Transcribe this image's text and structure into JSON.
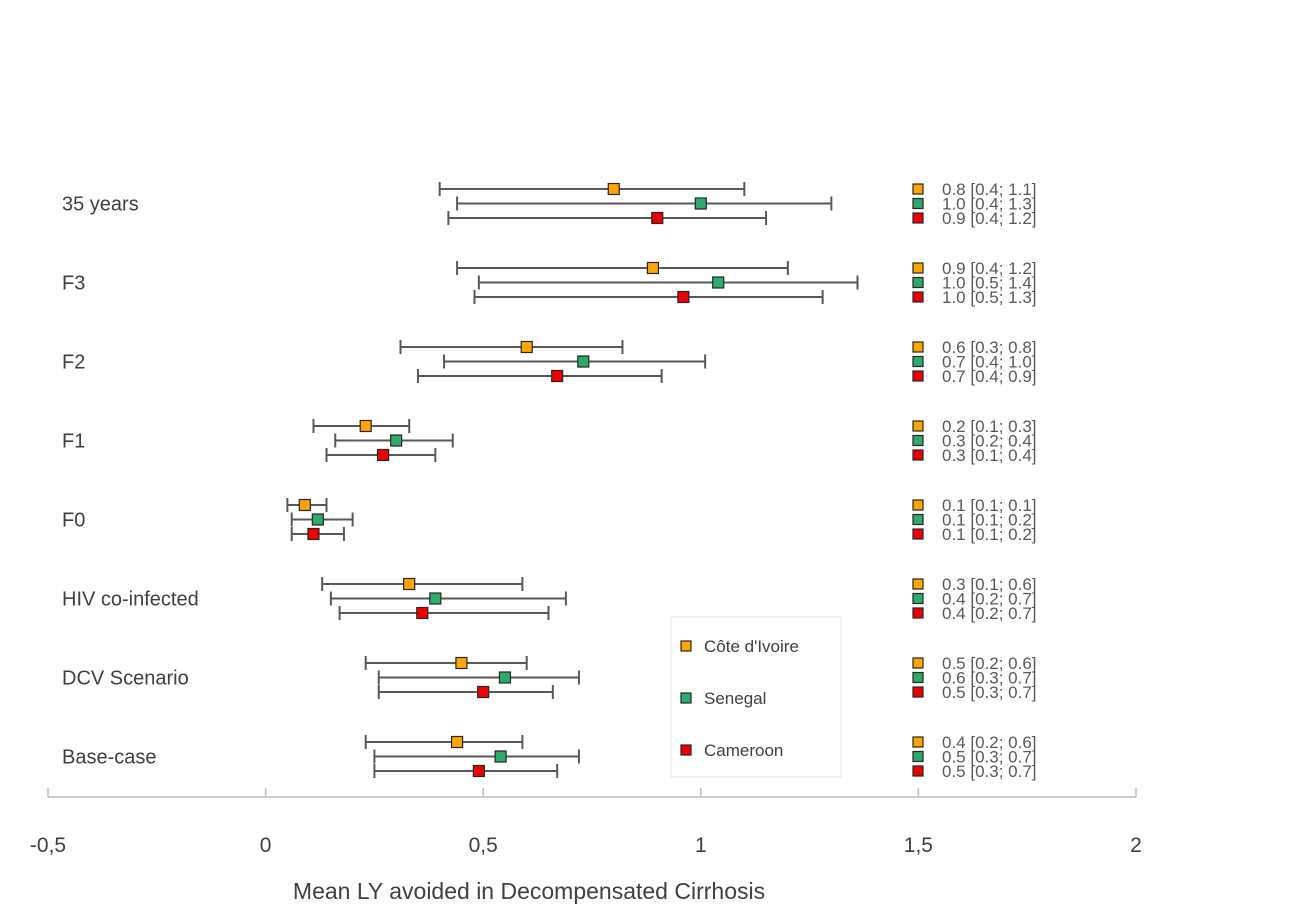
{
  "chart_data": {
    "type": "forest",
    "xlabel": "Mean LY avoided in Decompensated Cirrhosis",
    "xlim": [
      -0.5,
      2
    ],
    "x_ticks": [
      -0.5,
      0,
      0.5,
      1,
      1.5,
      2
    ],
    "x_tick_labels": [
      "-0,5",
      "0",
      "0,5",
      "1",
      "1,5",
      "2"
    ],
    "legend_position": "lower-right",
    "series": [
      {
        "name": "Côte d'Ivoire",
        "color": "#FFA500"
      },
      {
        "name": "Senegal",
        "color": "#2EAA6A"
      },
      {
        "name": "Cameroon",
        "color": "#EE0000"
      }
    ],
    "categories": [
      {
        "label": "35 years",
        "rows": [
          {
            "series": "Côte d'Ivoire",
            "mean": 0.8,
            "low": 0.4,
            "high": 1.1,
            "text": "0.8 [0.4; 1.1]"
          },
          {
            "series": "Senegal",
            "mean": 1.0,
            "low": 0.44,
            "high": 1.3,
            "text": "1.0 [0.4; 1.3]"
          },
          {
            "series": "Cameroon",
            "mean": 0.9,
            "low": 0.42,
            "high": 1.15,
            "text": "0.9 [0.4; 1.2]"
          }
        ]
      },
      {
        "label": "F3",
        "rows": [
          {
            "series": "Côte d'Ivoire",
            "mean": 0.89,
            "low": 0.44,
            "high": 1.2,
            "text": "0.9 [0.4; 1.2]"
          },
          {
            "series": "Senegal",
            "mean": 1.04,
            "low": 0.49,
            "high": 1.36,
            "text": "1.0 [0.5; 1.4]"
          },
          {
            "series": "Cameroon",
            "mean": 0.96,
            "low": 0.48,
            "high": 1.28,
            "text": "1.0 [0.5; 1.3]"
          }
        ]
      },
      {
        "label": "F2",
        "rows": [
          {
            "series": "Côte d'Ivoire",
            "mean": 0.6,
            "low": 0.31,
            "high": 0.82,
            "text": "0.6 [0.3; 0.8]"
          },
          {
            "series": "Senegal",
            "mean": 0.73,
            "low": 0.41,
            "high": 1.01,
            "text": "0.7 [0.4; 1.0]"
          },
          {
            "series": "Cameroon",
            "mean": 0.67,
            "low": 0.35,
            "high": 0.91,
            "text": "0.7 [0.4; 0.9]"
          }
        ]
      },
      {
        "label": "F1",
        "rows": [
          {
            "series": "Côte d'Ivoire",
            "mean": 0.23,
            "low": 0.11,
            "high": 0.33,
            "text": "0.2 [0.1; 0.3]"
          },
          {
            "series": "Senegal",
            "mean": 0.3,
            "low": 0.16,
            "high": 0.43,
            "text": "0.3 [0.2; 0.4]"
          },
          {
            "series": "Cameroon",
            "mean": 0.27,
            "low": 0.14,
            "high": 0.39,
            "text": "0.3 [0.1; 0.4]"
          }
        ]
      },
      {
        "label": "F0",
        "rows": [
          {
            "series": "Côte d'Ivoire",
            "mean": 0.09,
            "low": 0.05,
            "high": 0.14,
            "text": "0.1 [0.1; 0.1]"
          },
          {
            "series": "Senegal",
            "mean": 0.12,
            "low": 0.06,
            "high": 0.2,
            "text": "0.1 [0.1; 0.2]"
          },
          {
            "series": "Cameroon",
            "mean": 0.11,
            "low": 0.06,
            "high": 0.18,
            "text": "0.1 [0.1; 0.2]"
          }
        ]
      },
      {
        "label": "HIV co-infected",
        "rows": [
          {
            "series": "Côte d'Ivoire",
            "mean": 0.33,
            "low": 0.13,
            "high": 0.59,
            "text": "0.3 [0.1; 0.6]"
          },
          {
            "series": "Senegal",
            "mean": 0.39,
            "low": 0.15,
            "high": 0.69,
            "text": "0.4 [0.2; 0.7]"
          },
          {
            "series": "Cameroon",
            "mean": 0.36,
            "low": 0.17,
            "high": 0.65,
            "text": "0.4 [0.2; 0.7]"
          }
        ]
      },
      {
        "label": "DCV Scenario",
        "rows": [
          {
            "series": "Côte d'Ivoire",
            "mean": 0.45,
            "low": 0.23,
            "high": 0.6,
            "text": "0.5 [0.2; 0.6]"
          },
          {
            "series": "Senegal",
            "mean": 0.55,
            "low": 0.26,
            "high": 0.72,
            "text": "0.6 [0.3; 0.7]"
          },
          {
            "series": "Cameroon",
            "mean": 0.5,
            "low": 0.26,
            "high": 0.66,
            "text": "0.5 [0.3; 0.7]"
          }
        ]
      },
      {
        "label": "Base-case",
        "rows": [
          {
            "series": "Côte d'Ivoire",
            "mean": 0.44,
            "low": 0.23,
            "high": 0.59,
            "text": "0.4 [0.2; 0.6]"
          },
          {
            "series": "Senegal",
            "mean": 0.54,
            "low": 0.25,
            "high": 0.72,
            "text": "0.5 [0.3; 0.7]"
          },
          {
            "series": "Cameroon",
            "mean": 0.49,
            "low": 0.25,
            "high": 0.67,
            "text": "0.5 [0.3; 0.7]"
          }
        ]
      }
    ]
  }
}
